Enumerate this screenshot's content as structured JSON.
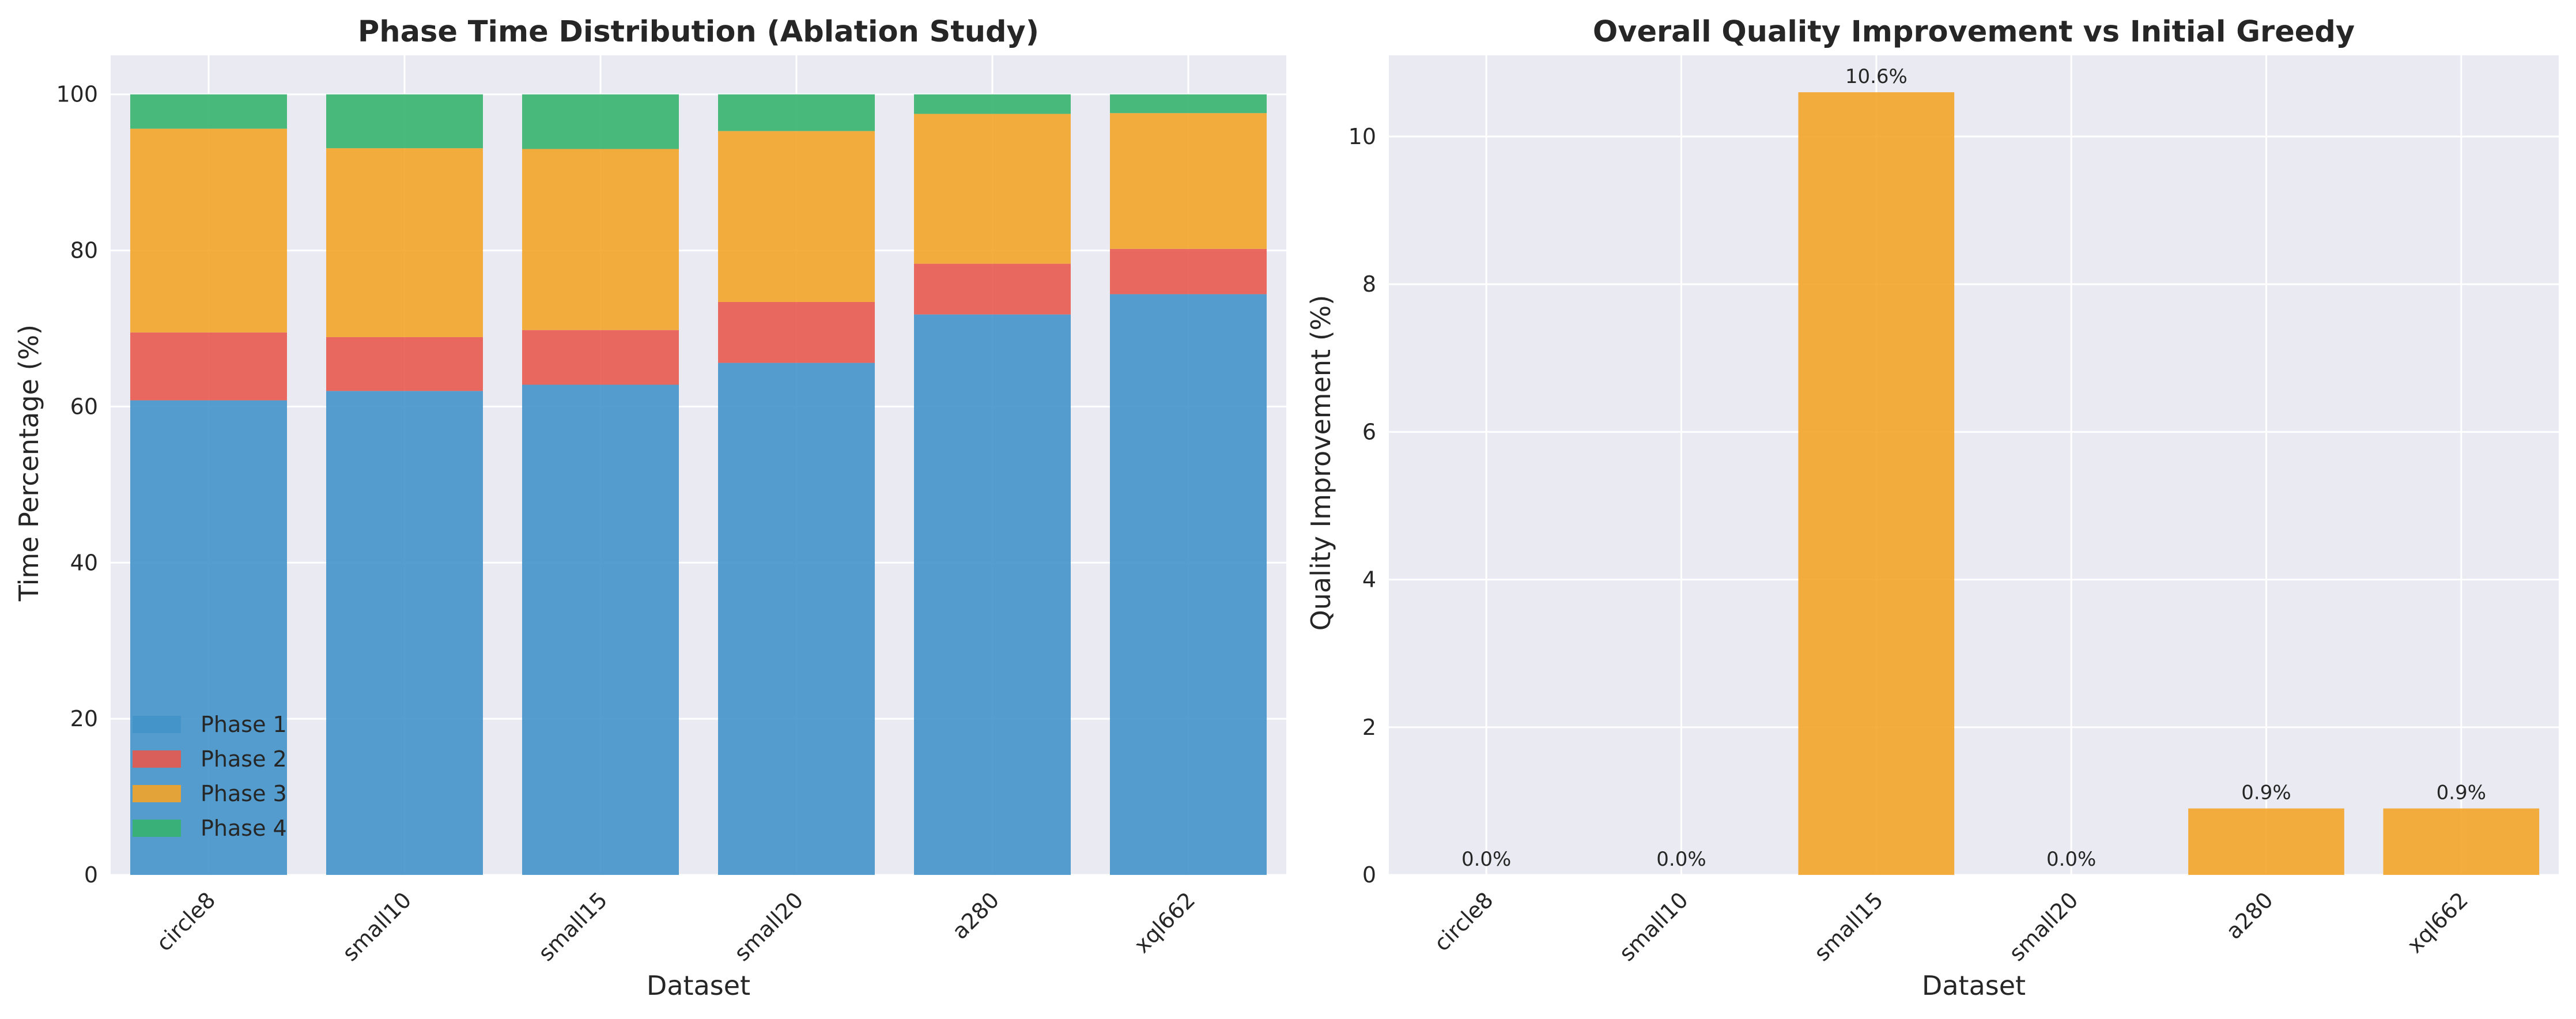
{
  "chart_data": [
    {
      "type": "bar",
      "stacked": true,
      "title": "Phase Time Distribution (Ablation Study)",
      "xlabel": "Dataset",
      "ylabel": "Time Percentage (%)",
      "categories": [
        "circle8",
        "small10",
        "small15",
        "small20",
        "a280",
        "xql662"
      ],
      "ylim": [
        0,
        105
      ],
      "yticks": [
        "0",
        "20",
        "40",
        "60",
        "80",
        "100"
      ],
      "grid": true,
      "legend_position": "lower-left",
      "series": [
        {
          "name": "Phase 1",
          "color": "#4393c9",
          "values": [
            60.8,
            62.0,
            62.8,
            65.6,
            71.8,
            74.4
          ]
        },
        {
          "name": "Phase 2",
          "color": "#e8594f",
          "values": [
            8.7,
            6.9,
            7.0,
            7.8,
            6.5,
            5.8
          ]
        },
        {
          "name": "Phase 3",
          "color": "#f3a429",
          "values": [
            26.1,
            24.2,
            23.2,
            21.9,
            19.2,
            17.4
          ]
        },
        {
          "name": "Phase 4",
          "color": "#36b26e",
          "values": [
            4.4,
            6.9,
            7.0,
            4.7,
            2.5,
            2.4
          ]
        }
      ]
    },
    {
      "type": "bar",
      "title": "Overall Quality Improvement vs Initial Greedy",
      "xlabel": "Dataset",
      "ylabel": "Quality Improvement (%)",
      "categories": [
        "circle8",
        "small10",
        "small15",
        "small20",
        "a280",
        "xql662"
      ],
      "values": [
        0.0,
        0.0,
        10.6,
        0.0,
        0.9,
        0.9
      ],
      "data_labels": [
        "0.0%",
        "0.0%",
        "10.6%",
        "0.0%",
        "0.9%",
        "0.9%"
      ],
      "color": "#f3a429",
      "ylim": [
        0,
        11.1
      ],
      "yticks": [
        "0",
        "2",
        "4",
        "6",
        "8",
        "10"
      ],
      "grid": true
    }
  ]
}
